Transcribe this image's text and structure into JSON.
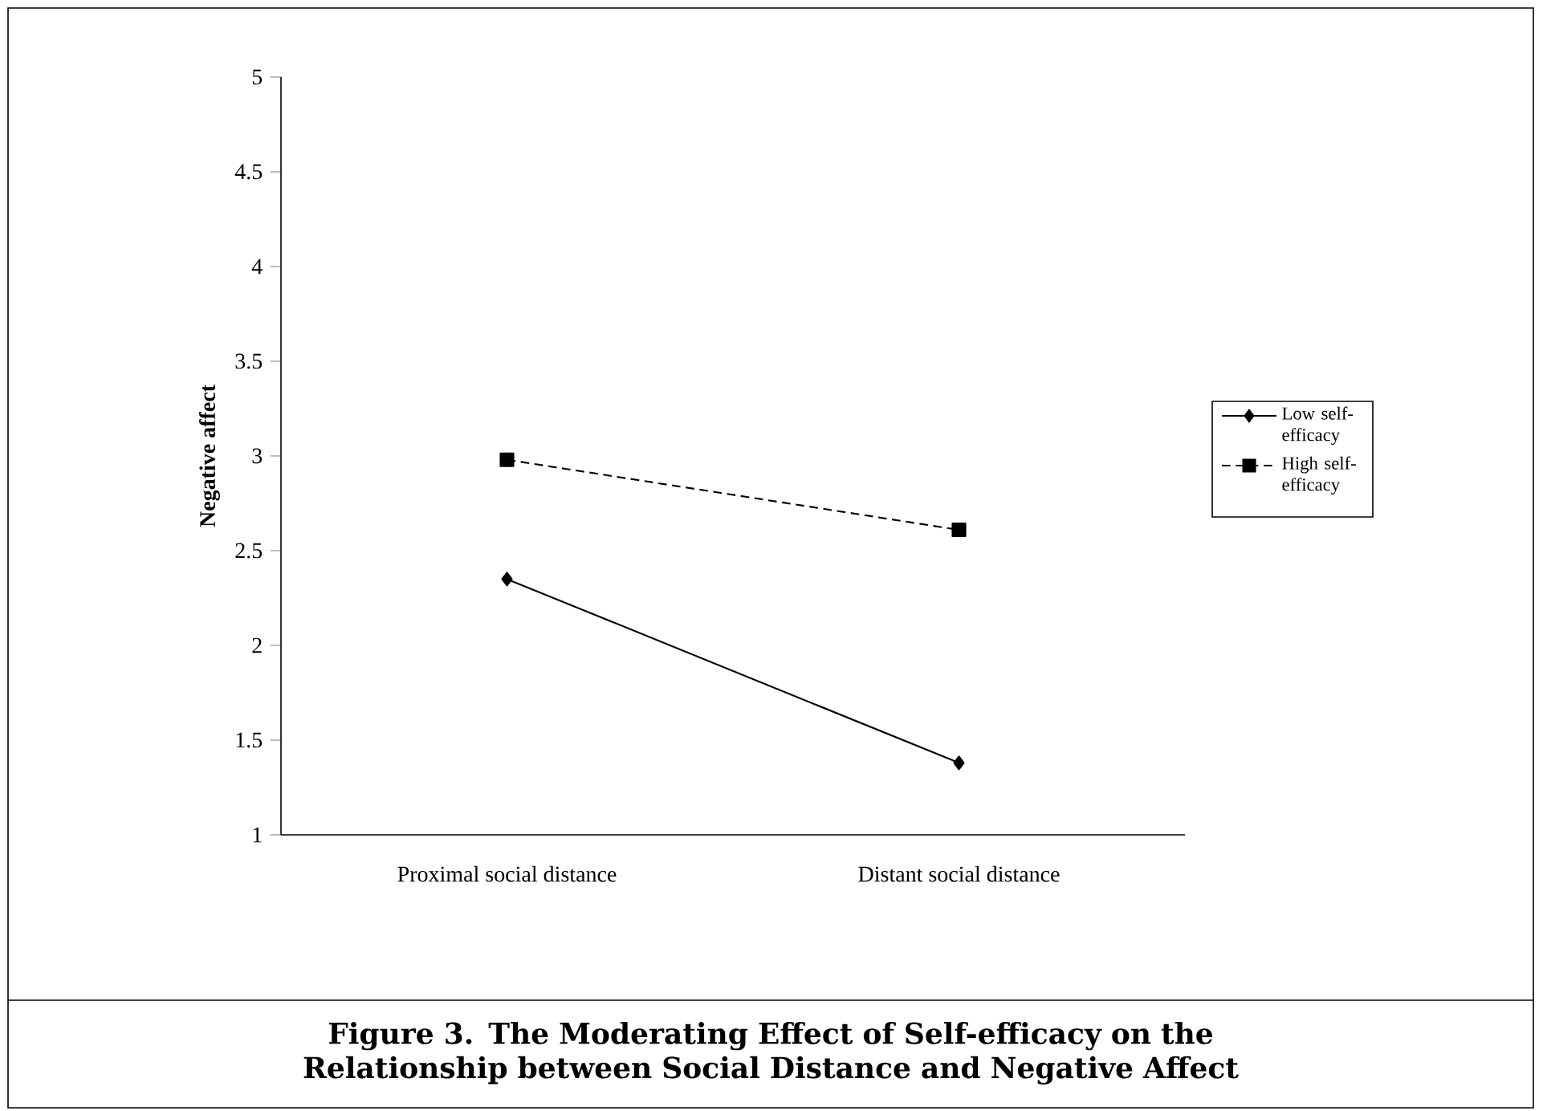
{
  "chart_data": {
    "type": "line",
    "title": "Figure 3.  The Moderating Effect of Self-efficacy on the Relationship between Social Distance and Negative Affect",
    "ylabel": "Negative affect",
    "categories": [
      "Proximal social distance",
      "Distant social distance"
    ],
    "series": [
      {
        "name": "Low self-efficacy",
        "color": "#000000",
        "values": [
          2.35,
          1.38
        ],
        "marker": "diamond",
        "line_style": "solid"
      },
      {
        "name": "High self-efficacy",
        "color": "#000000",
        "values": [
          2.98,
          2.61
        ],
        "marker": "square",
        "line_style": "dashed"
      }
    ],
    "ylim": [
      1,
      5
    ],
    "yticks": [
      1,
      1.5,
      2,
      2.5,
      3,
      3.5,
      4,
      4.5,
      5
    ],
    "legend": "right"
  }
}
